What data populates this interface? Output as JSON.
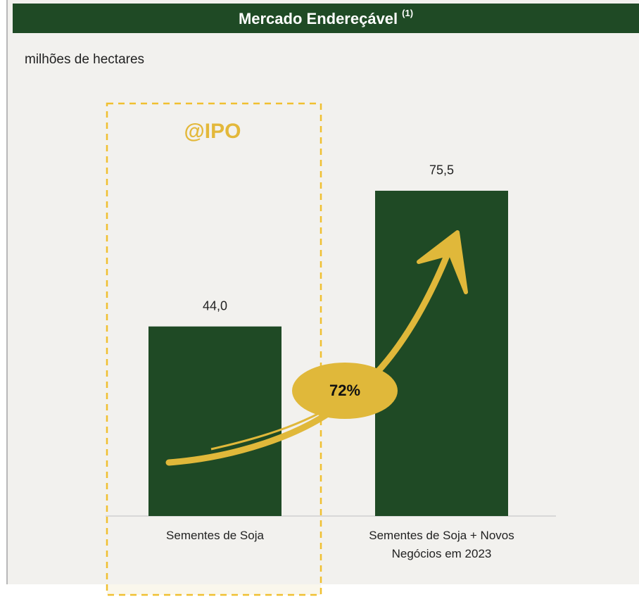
{
  "chart_data": {
    "type": "bar",
    "title": "Mercado Endereçável",
    "title_note": "(1)",
    "subtitle": "milhões de hectares",
    "categories": [
      "Sementes de Soja",
      "Sementes de Soja + Novos Negócios em 2023"
    ],
    "values": [
      44.0,
      75.5
    ],
    "value_labels": [
      "44,0",
      "75,5"
    ],
    "color": "#1f4a25",
    "ylim": [
      0,
      100
    ],
    "annotations": [
      "@IPO",
      "72%"
    ]
  }
}
